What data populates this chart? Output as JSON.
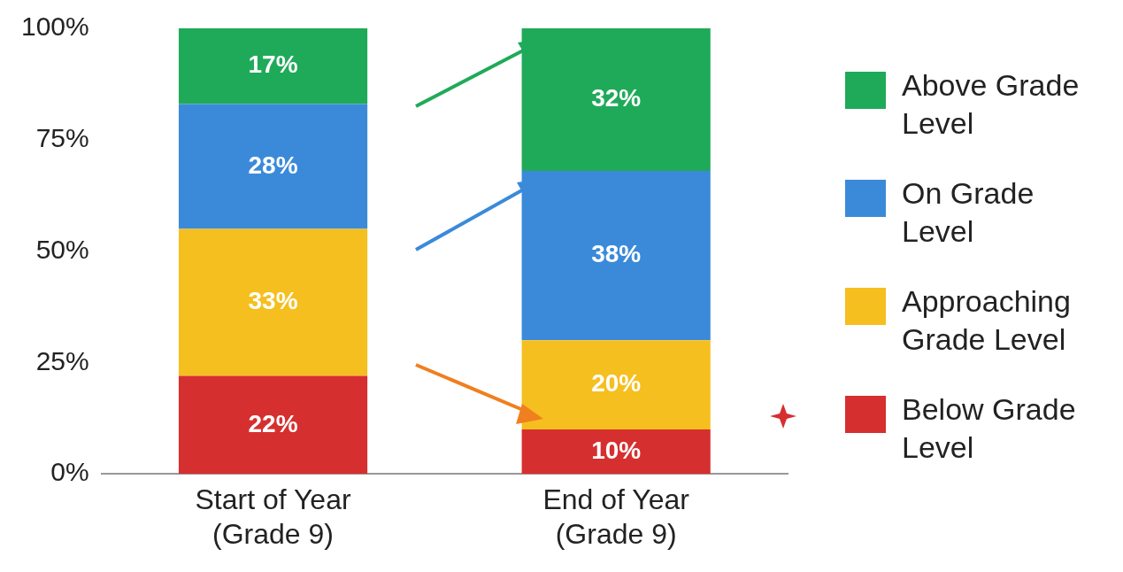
{
  "chart_data": {
    "type": "bar",
    "stacked": true,
    "categories": [
      "Start of Year (Grade 9)",
      "End of Year (Grade 9)"
    ],
    "series": [
      {
        "name": "Below Grade Level",
        "color": "#d62f2f",
        "values": [
          22,
          10
        ],
        "value_labels": [
          "22%",
          "10%"
        ]
      },
      {
        "name": "Approaching Grade Level",
        "color": "#f5bf1f",
        "values": [
          33,
          20
        ],
        "value_labels": [
          "33%",
          "20%"
        ]
      },
      {
        "name": "On Grade Level",
        "color": "#3b8ad9",
        "values": [
          28,
          38
        ],
        "value_labels": [
          "28%",
          "38%"
        ]
      },
      {
        "name": "Above Grade Level",
        "color": "#1faa59",
        "values": [
          17,
          32
        ],
        "value_labels": [
          "17%",
          "32%"
        ]
      }
    ],
    "ylim": [
      0,
      100
    ],
    "yticks": [
      {
        "value": 0,
        "label": "0%"
      },
      {
        "value": 25,
        "label": "25%"
      },
      {
        "value": 50,
        "label": "50%"
      },
      {
        "value": 75,
        "label": "75%"
      },
      {
        "value": 100,
        "label": "100%"
      }
    ],
    "legend": "right",
    "grid": false
  }
}
